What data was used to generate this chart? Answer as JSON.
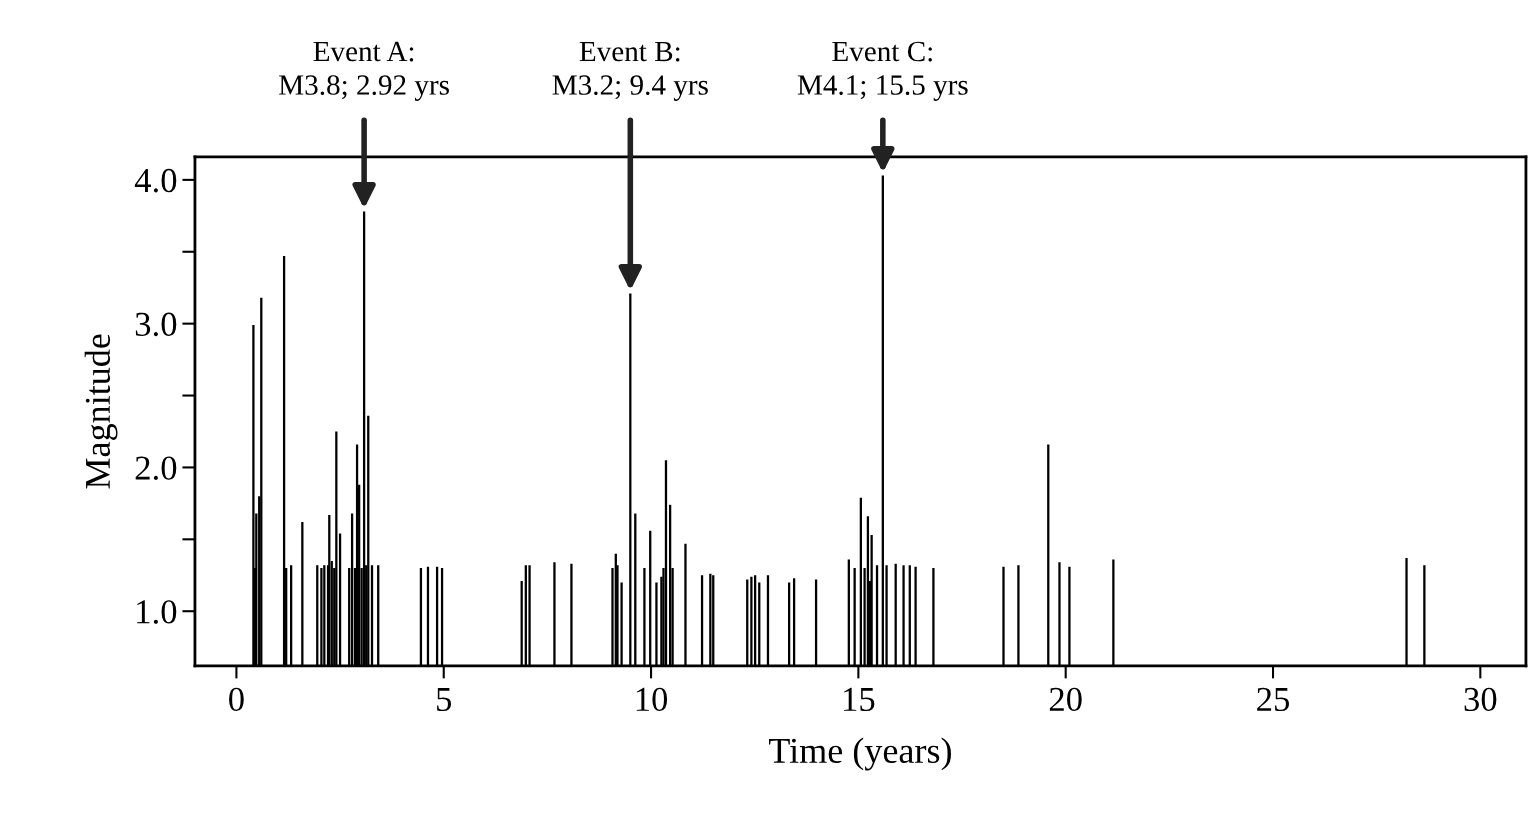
{
  "chart_data": {
    "type": "bar",
    "xlabel": "Time (years)",
    "ylabel": "Magnitude",
    "x": [
      0.41,
      0.45,
      0.48,
      0.55,
      0.6,
      1.15,
      1.2,
      1.32,
      1.59,
      1.95,
      2.05,
      2.12,
      2.21,
      2.24,
      2.3,
      2.36,
      2.41,
      2.5,
      2.72,
      2.79,
      2.86,
      2.91,
      2.96,
      3.02,
      3.08,
      3.13,
      3.18,
      3.27,
      3.42,
      4.45,
      4.62,
      4.84,
      4.96,
      6.88,
      6.98,
      7.07,
      7.67,
      8.08,
      9.07,
      9.15,
      9.19,
      9.29,
      9.5,
      9.62,
      9.84,
      9.98,
      10.13,
      10.25,
      10.3,
      10.36,
      10.46,
      10.52,
      10.83,
      11.23,
      11.43,
      11.5,
      12.32,
      12.42,
      12.51,
      12.61,
      12.82,
      13.33,
      13.45,
      13.98,
      14.77,
      14.91,
      15.06,
      15.15,
      15.23,
      15.28,
      15.32,
      15.45,
      15.59,
      15.68,
      15.9,
      16.09,
      16.24,
      16.38,
      16.81,
      18.5,
      18.86,
      19.58,
      19.85,
      20.09,
      21.15,
      28.22,
      28.65
    ],
    "values": [
      2.99,
      1.3,
      1.68,
      1.8,
      3.18,
      3.47,
      1.3,
      1.32,
      1.62,
      1.32,
      1.3,
      1.32,
      1.32,
      1.67,
      1.35,
      1.3,
      2.25,
      1.54,
      1.3,
      1.68,
      1.3,
      2.16,
      1.88,
      1.3,
      3.78,
      1.32,
      2.36,
      1.32,
      1.32,
      1.3,
      1.31,
      1.31,
      1.3,
      1.21,
      1.32,
      1.32,
      1.34,
      1.33,
      1.3,
      1.4,
      1.32,
      1.2,
      3.21,
      1.68,
      1.3,
      1.56,
      1.2,
      1.24,
      1.3,
      2.05,
      1.74,
      1.3,
      1.47,
      1.25,
      1.26,
      1.25,
      1.22,
      1.24,
      1.25,
      1.2,
      1.25,
      1.2,
      1.23,
      1.22,
      1.36,
      1.3,
      1.79,
      1.3,
      1.66,
      1.21,
      1.53,
      1.32,
      4.03,
      1.32,
      1.33,
      1.32,
      1.32,
      1.31,
      1.3,
      1.31,
      1.32,
      2.16,
      1.34,
      1.31,
      1.36,
      1.37,
      1.32
    ],
    "color": "#000000",
    "xlim": [
      -1.0,
      31.1
    ],
    "ylim": [
      0.62,
      4.16
    ],
    "xticks": [
      0,
      5,
      10,
      15,
      20,
      25,
      30
    ],
    "yticks": [
      {
        "value": 1.0,
        "label": "1.0"
      },
      {
        "value": 1.5,
        "label": null
      },
      {
        "value": 2.0,
        "label": "2.0"
      },
      {
        "value": 2.5,
        "label": null
      },
      {
        "value": 3.0,
        "label": "3.0"
      },
      {
        "value": 3.5,
        "label": null
      },
      {
        "value": 4.0,
        "label": "4.0"
      }
    ],
    "grid": false,
    "annotations": [
      {
        "text": "Event A:\nM3.8; 2.92 yrs",
        "x": 3.08,
        "y": 3.78
      },
      {
        "text": "Event B:\nM3.2; 9.4 yrs",
        "x": 9.5,
        "y": 3.21
      },
      {
        "text": "Event C:\nM4.1; 15.5 yrs",
        "x": 15.59,
        "y": 4.03
      }
    ]
  }
}
